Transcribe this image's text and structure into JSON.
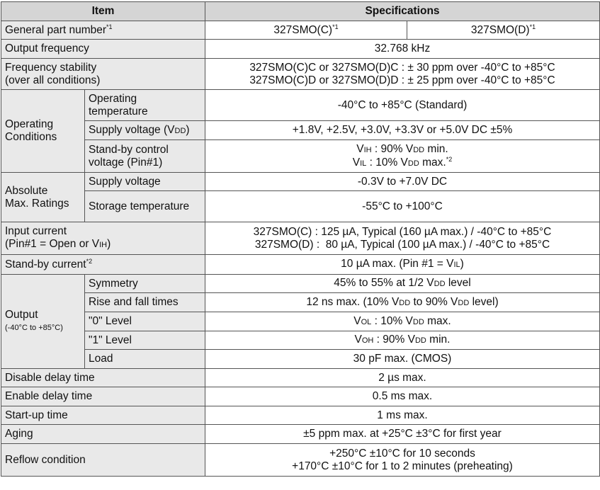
{
  "header": {
    "item": "Item",
    "specifications": "Specifications"
  },
  "general_part_number": {
    "label": "General part number",
    "label_sup": "*1",
    "c": "327SMO(C)",
    "c_sup": "*1",
    "d": "327SMO(D)",
    "d_sup": "*1"
  },
  "output_frequency": {
    "label": "Output frequency",
    "value": "32.768 kHz"
  },
  "frequency_stability": {
    "label_line1": "Frequency stability",
    "label_line2": "(over all conditions)",
    "value_line1": "327SMO(C)C or 327SMO(D)C : ± 30 ppm over -40°C to +85°C",
    "value_line2": "327SMO(C)D or 327SMO(D)D : ± 25 ppm over -40°C to +85°C"
  },
  "operating_conditions": {
    "label_line1": "Operating",
    "label_line2": "Conditions",
    "op_temp": {
      "label_line1": "Operating",
      "label_line2": "temperature",
      "value": "-40°C to +85°C (Standard)"
    },
    "supply_voltage": {
      "label_pre": "Supply voltage (V",
      "label_sub": "DD",
      "label_post": ")",
      "value": "+1.8V, +2.5V, +3.0V, +3.3V or +5.0V DC ±5%"
    },
    "standby_control": {
      "label_line1": "Stand-by control",
      "label_line2": "voltage (Pin#1)",
      "vih_pre": "V",
      "vih_sub": "IH",
      "vih_text": " : 90% V",
      "vih_sub2": "DD",
      "vih_post": " min.",
      "vil_pre": "V",
      "vil_sub": "IL",
      "vil_text": " : 10% V",
      "vil_sub2": "DD",
      "vil_post": " max.",
      "vil_sup": "*2"
    }
  },
  "absolute_max": {
    "label_line1": "Absolute",
    "label_line2": "Max. Ratings",
    "supply_voltage": {
      "label": "Supply voltage",
      "value": "-0.3V to +7.0V DC"
    },
    "storage_temp": {
      "label": "Storage temperature",
      "value": "-55°C to +100°C"
    }
  },
  "input_current": {
    "label_line1": "Input current",
    "label_line2_pre": "(Pin#1 = Open or V",
    "label_line2_sub": "IH",
    "label_line2_post": ")",
    "value_line1": "327SMO(C) : 125 µA, Typical (160 µA max.) / -40°C to +85°C",
    "value_line2": "327SMO(D) :  80 µA, Typical (100 µA max.) / -40°C to +85°C"
  },
  "standby_current": {
    "label": "Stand-by current",
    "label_sup": "*2",
    "value_pre": "10 µA max. (Pin #1 = V",
    "value_sub": "IL",
    "value_post": ")"
  },
  "output": {
    "label": "Output",
    "label_note": "(-40°C to +85°C)",
    "symmetry": {
      "label": "Symmetry",
      "pre": "45% to 55% at 1/2 V",
      "sub": "DD",
      "post": " level"
    },
    "rise_fall": {
      "label": "Rise and fall times",
      "pre": "12 ns max. (10% V",
      "sub": "DD",
      "mid": " to 90% V",
      "sub2": "DD",
      "post": " level)"
    },
    "level0": {
      "label": "\"0\" Level",
      "pre": "V",
      "sub": "OL",
      "mid": " : 10% V",
      "sub2": "DD",
      "post": " max."
    },
    "level1": {
      "label": "\"1\" Level",
      "pre": "V",
      "sub": "OH",
      "mid": " : 90% V",
      "sub2": "DD",
      "post": " min."
    },
    "load": {
      "label": "Load",
      "value": "30 pF max. (CMOS)"
    }
  },
  "disable_delay": {
    "label": "Disable delay time",
    "value": "2 µs max."
  },
  "enable_delay": {
    "label": "Enable delay time",
    "value": "0.5 ms max."
  },
  "startup": {
    "label": "Start-up time",
    "value": "1 ms max."
  },
  "aging": {
    "label": "Aging",
    "value": "±5 ppm max. at +25°C ±3°C for first year"
  },
  "reflow": {
    "label": "Reflow condition",
    "value_line1": "+250°C ±10°C for 10 seconds",
    "value_line2": "+170°C ±10°C for 1 to 2 minutes (preheating)"
  }
}
